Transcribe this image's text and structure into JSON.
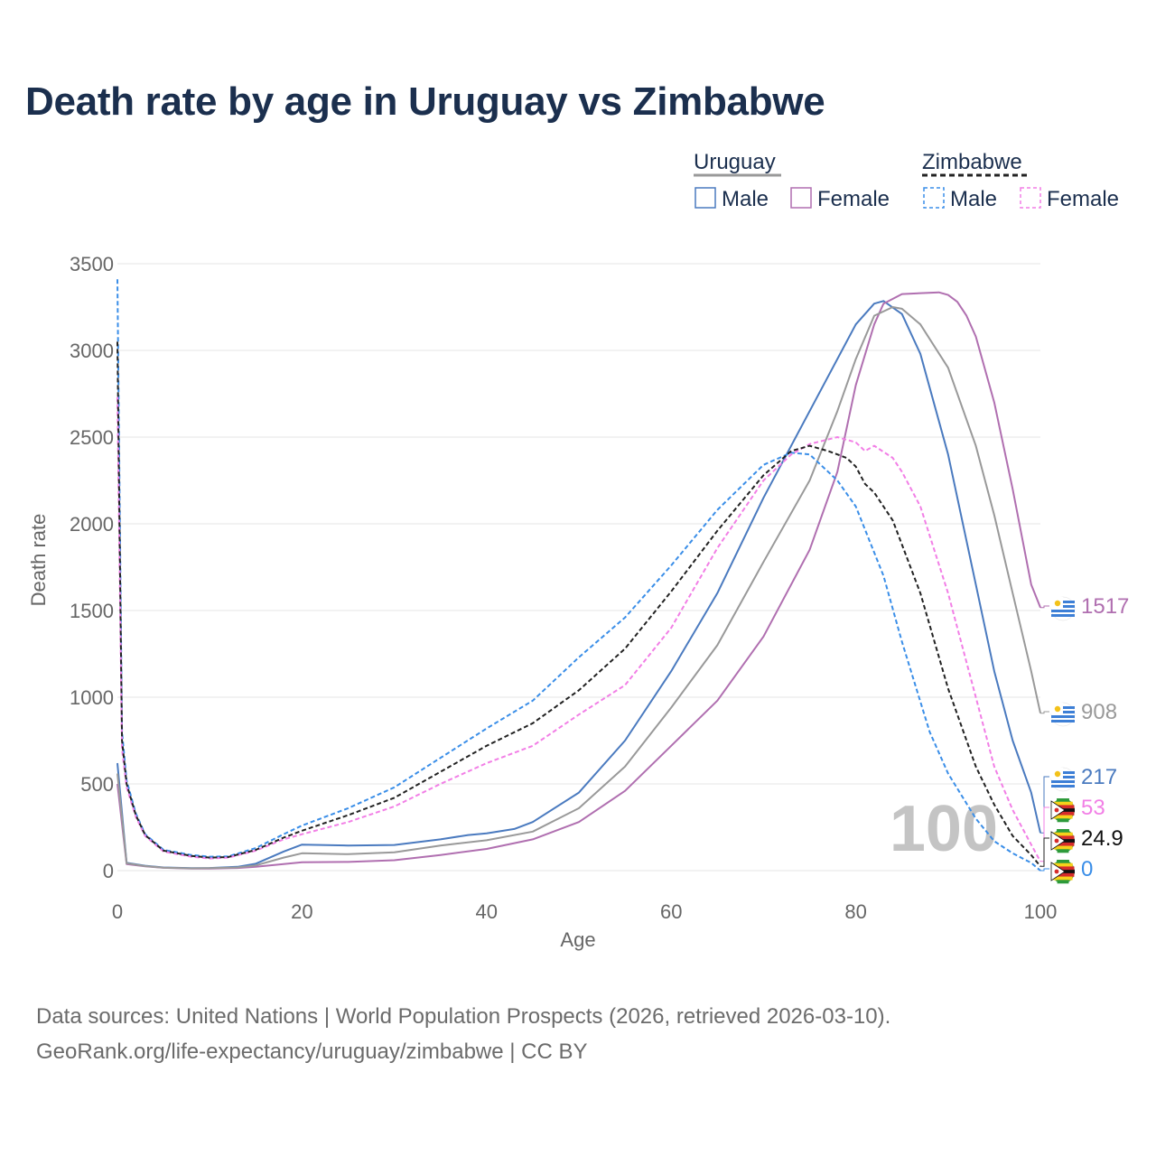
{
  "chart_data": {
    "type": "line",
    "title": "Death rate by age in Uruguay vs Zimbabwe",
    "xlabel": "Age",
    "ylabel": "Death rate",
    "xlim": [
      0,
      100
    ],
    "ylim": [
      0,
      3500
    ],
    "xticks": [
      0,
      20,
      40,
      60,
      80,
      100
    ],
    "yticks": [
      0,
      500,
      1000,
      1500,
      2000,
      2500,
      3000,
      3500
    ],
    "watermark": "100",
    "legend": {
      "position": "top-right",
      "groups": [
        {
          "label": "Uruguay",
          "items": [
            "Male",
            "Female"
          ]
        },
        {
          "label": "Zimbabwe",
          "items": [
            "Male",
            "Female"
          ]
        }
      ]
    },
    "series": [
      {
        "name": "Uruguay Male",
        "country": "Uruguay",
        "sex": "Male",
        "style": "solid",
        "color": "#4a7abf",
        "end_label": "217",
        "end_value": 217,
        "x": [
          0,
          1,
          3,
          5,
          8,
          10,
          13,
          15,
          18,
          20,
          25,
          30,
          35,
          38,
          40,
          43,
          45,
          50,
          55,
          60,
          65,
          70,
          75,
          80,
          82,
          83,
          85,
          87,
          90,
          93,
          95,
          97,
          99,
          100
        ],
        "y": [
          620,
          45,
          28,
          18,
          14,
          15,
          22,
          40,
          110,
          150,
          145,
          148,
          180,
          205,
          215,
          240,
          280,
          450,
          750,
          1150,
          1600,
          2150,
          2650,
          3150,
          3270,
          3285,
          3210,
          2980,
          2400,
          1650,
          1150,
          750,
          450,
          217
        ]
      },
      {
        "name": "Uruguay Female",
        "country": "Uruguay",
        "sex": "Female",
        "style": "solid",
        "color": "#b06fb0",
        "end_label": "1517",
        "end_value": 1517,
        "x": [
          0,
          1,
          3,
          5,
          8,
          10,
          13,
          15,
          18,
          20,
          25,
          30,
          35,
          40,
          45,
          50,
          55,
          60,
          65,
          70,
          75,
          78,
          80,
          82,
          83,
          85,
          87,
          89,
          90,
          91,
          92,
          93,
          95,
          97,
          99,
          100
        ],
        "y": [
          500,
          38,
          25,
          16,
          12,
          12,
          15,
          22,
          38,
          48,
          50,
          60,
          90,
          125,
          180,
          280,
          460,
          720,
          980,
          1350,
          1850,
          2300,
          2800,
          3150,
          3270,
          3325,
          3330,
          3335,
          3320,
          3280,
          3200,
          3080,
          2700,
          2200,
          1650,
          1517
        ]
      },
      {
        "name": "Uruguay Both",
        "country": "Uruguay",
        "sex": "Both",
        "style": "solid",
        "color": "#999999",
        "end_label": "908",
        "end_value": 908,
        "x": [
          0,
          1,
          3,
          5,
          8,
          10,
          13,
          15,
          18,
          20,
          25,
          30,
          35,
          40,
          45,
          50,
          55,
          60,
          65,
          70,
          75,
          78,
          80,
          82,
          84,
          85,
          87,
          90,
          93,
          95,
          97,
          99,
          100
        ],
        "y": [
          560,
          42,
          26,
          17,
          13,
          14,
          18,
          30,
          75,
          100,
          95,
          105,
          145,
          175,
          225,
          360,
          600,
          940,
          1300,
          1780,
          2250,
          2650,
          2950,
          3200,
          3250,
          3240,
          3150,
          2900,
          2450,
          2050,
          1600,
          1150,
          908
        ]
      },
      {
        "name": "Zimbabwe Male",
        "country": "Zimbabwe",
        "sex": "Male",
        "style": "dashed",
        "color": "#3a8ee8",
        "end_label": "0",
        "end_value": 0,
        "x": [
          0,
          0.5,
          1,
          2,
          3,
          5,
          8,
          10,
          12,
          15,
          18,
          20,
          25,
          30,
          35,
          40,
          45,
          50,
          55,
          60,
          65,
          70,
          73,
          75,
          78,
          80,
          83,
          85,
          88,
          90,
          93,
          95,
          97,
          99,
          100
        ],
        "y": [
          3410,
          800,
          520,
          330,
          210,
          120,
          90,
          80,
          82,
          130,
          210,
          260,
          360,
          480,
          650,
          820,
          980,
          1230,
          1460,
          1760,
          2080,
          2340,
          2410,
          2400,
          2250,
          2100,
          1700,
          1320,
          800,
          560,
          300,
          170,
          100,
          45,
          0
        ]
      },
      {
        "name": "Zimbabwe Female",
        "country": "Zimbabwe",
        "sex": "Female",
        "style": "dashed",
        "color": "#f27fe6",
        "end_label": "53",
        "end_value": 53,
        "x": [
          0,
          0.5,
          1,
          2,
          3,
          5,
          8,
          10,
          12,
          15,
          18,
          20,
          25,
          30,
          35,
          40,
          45,
          50,
          55,
          60,
          65,
          70,
          73,
          75,
          78,
          80,
          81,
          82,
          84,
          85,
          87,
          90,
          93,
          95,
          97,
          99,
          100
        ],
        "y": [
          2730,
          700,
          480,
          310,
          200,
          110,
          80,
          70,
          75,
          115,
          180,
          210,
          280,
          370,
          500,
          620,
          720,
          900,
          1070,
          1400,
          1860,
          2250,
          2400,
          2460,
          2500,
          2470,
          2420,
          2450,
          2380,
          2300,
          2100,
          1600,
          1000,
          600,
          350,
          150,
          53
        ]
      },
      {
        "name": "Zimbabwe Both",
        "country": "Zimbabwe",
        "sex": "Both",
        "style": "dashed",
        "color": "#222222",
        "end_label": "24.9",
        "end_value": 24.9,
        "x": [
          0,
          0.5,
          1,
          2,
          3,
          5,
          8,
          10,
          12,
          15,
          18,
          20,
          25,
          30,
          35,
          40,
          45,
          50,
          55,
          60,
          65,
          70,
          73,
          75,
          77,
          79,
          80,
          81,
          82,
          84,
          85,
          87,
          90,
          93,
          95,
          97,
          99,
          100
        ],
        "y": [
          3050,
          750,
          500,
          320,
          205,
          115,
          85,
          75,
          78,
          120,
          190,
          230,
          320,
          420,
          570,
          720,
          850,
          1040,
          1280,
          1610,
          1960,
          2280,
          2420,
          2450,
          2420,
          2380,
          2330,
          2230,
          2180,
          2020,
          1880,
          1600,
          1050,
          600,
          380,
          200,
          90,
          24.9
        ]
      }
    ]
  },
  "source": {
    "line1": "Data sources: United Nations | World Population Prospects (2026, retrieved 2026-03-10).",
    "line2": "GeoRank.org/life-expectancy/uruguay/zimbabwe | CC BY"
  },
  "colors": {
    "title": "#1b2f4e",
    "axis_text": "#666666",
    "grid": "#e6e6e6",
    "watermark": "#c4c4c4"
  }
}
